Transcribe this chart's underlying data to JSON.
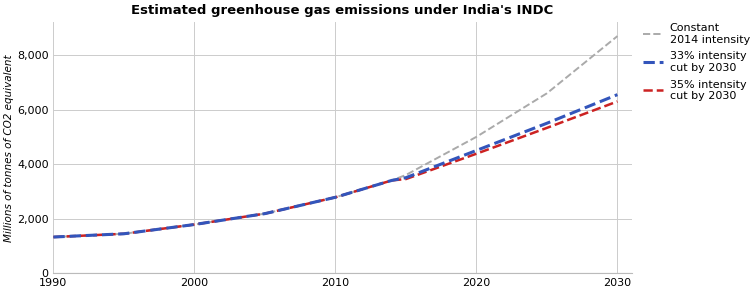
{
  "title": "Estimated greenhouse gas emissions under India's INDC",
  "ylabel": "Millions of tonnes of CO2 equivalent",
  "xlim": [
    1990,
    2031
  ],
  "ylim": [
    0,
    9200
  ],
  "yticks": [
    0,
    2000,
    4000,
    6000,
    8000
  ],
  "xticks": [
    1990,
    2000,
    2010,
    2020,
    2030
  ],
  "series": {
    "constant": {
      "label": "Constant\n2014 intensity",
      "color": "#aaaaaa",
      "linestyle": "--",
      "linewidth": 1.4,
      "years": [
        1990,
        1995,
        2000,
        2005,
        2010,
        2014,
        2015,
        2020,
        2025,
        2030
      ],
      "values": [
        1320,
        1440,
        1780,
        2180,
        2780,
        3400,
        3600,
        5000,
        6600,
        8700
      ]
    },
    "intensity33": {
      "label": "33% intensity\ncut by 2030",
      "color": "#3355bb",
      "linestyle": "--",
      "linewidth": 2.2,
      "years": [
        1990,
        1995,
        2000,
        2005,
        2010,
        2014,
        2015,
        2020,
        2025,
        2030
      ],
      "values": [
        1320,
        1440,
        1780,
        2180,
        2780,
        3400,
        3500,
        4500,
        5500,
        6550
      ]
    },
    "intensity35": {
      "label": "35% intensity\ncut by 2030",
      "color": "#cc2222",
      "linestyle": "--",
      "linewidth": 1.8,
      "years": [
        1990,
        1995,
        2000,
        2005,
        2010,
        2014,
        2015,
        2020,
        2025,
        2030
      ],
      "values": [
        1320,
        1440,
        1780,
        2180,
        2780,
        3400,
        3450,
        4380,
        5330,
        6300
      ]
    }
  },
  "background_color": "#ffffff",
  "grid_color": "#cccccc",
  "title_fontsize": 9.5,
  "label_fontsize": 7.5,
  "tick_fontsize": 8,
  "legend_fontsize": 8
}
